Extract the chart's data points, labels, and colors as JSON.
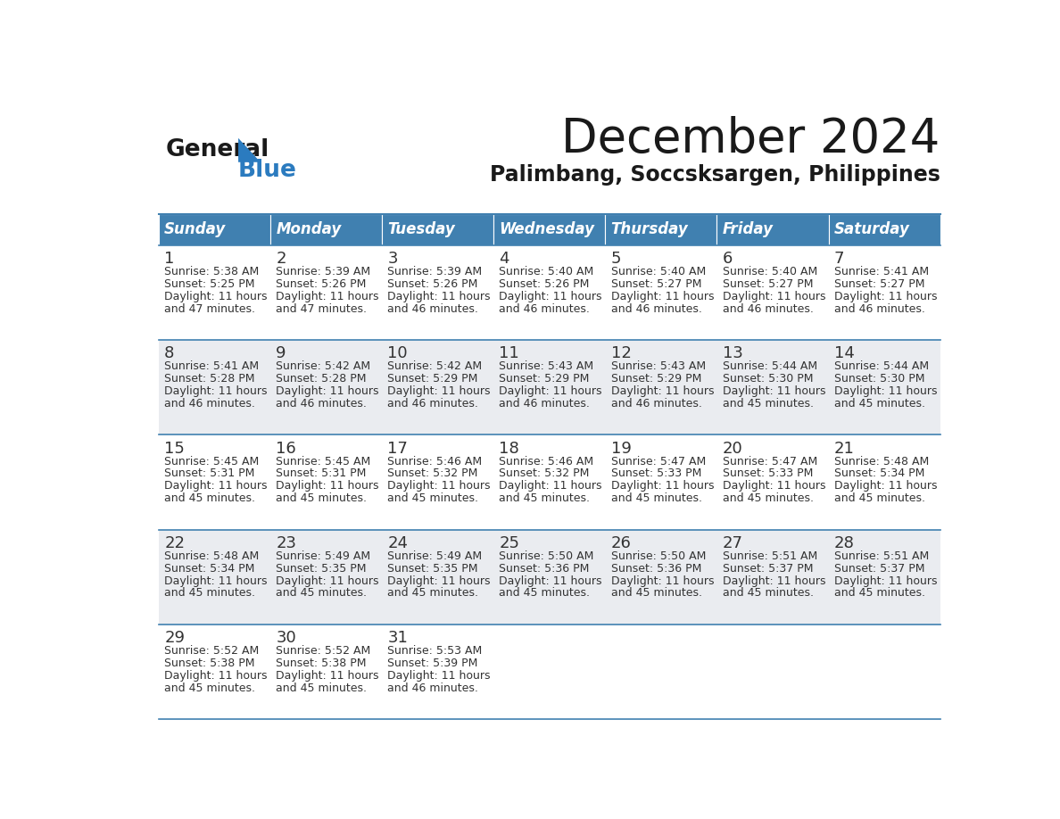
{
  "title": "December 2024",
  "subtitle": "Palimbang, Soccsksargen, Philippines",
  "days_of_week": [
    "Sunday",
    "Monday",
    "Tuesday",
    "Wednesday",
    "Thursday",
    "Friday",
    "Saturday"
  ],
  "header_bg": "#4080B0",
  "header_text": "#FFFFFF",
  "row_bg_odd": "#FFFFFF",
  "row_bg_even": "#EAECF0",
  "border_color": "#4080B0",
  "day_num_color": "#333333",
  "text_color": "#333333",
  "title_color": "#1a1a1a",
  "logo_general_color": "#1a1a1a",
  "logo_blue_color": "#2b7bbf",
  "calendar_data": [
    {
      "week": 1,
      "days": [
        {
          "day": 1,
          "dow": 0,
          "sunrise": "5:38 AM",
          "sunset": "5:25 PM",
          "daylight_hours": 11,
          "daylight_minutes": 47
        },
        {
          "day": 2,
          "dow": 1,
          "sunrise": "5:39 AM",
          "sunset": "5:26 PM",
          "daylight_hours": 11,
          "daylight_minutes": 47
        },
        {
          "day": 3,
          "dow": 2,
          "sunrise": "5:39 AM",
          "sunset": "5:26 PM",
          "daylight_hours": 11,
          "daylight_minutes": 46
        },
        {
          "day": 4,
          "dow": 3,
          "sunrise": "5:40 AM",
          "sunset": "5:26 PM",
          "daylight_hours": 11,
          "daylight_minutes": 46
        },
        {
          "day": 5,
          "dow": 4,
          "sunrise": "5:40 AM",
          "sunset": "5:27 PM",
          "daylight_hours": 11,
          "daylight_minutes": 46
        },
        {
          "day": 6,
          "dow": 5,
          "sunrise": "5:40 AM",
          "sunset": "5:27 PM",
          "daylight_hours": 11,
          "daylight_minutes": 46
        },
        {
          "day": 7,
          "dow": 6,
          "sunrise": "5:41 AM",
          "sunset": "5:27 PM",
          "daylight_hours": 11,
          "daylight_minutes": 46
        }
      ]
    },
    {
      "week": 2,
      "days": [
        {
          "day": 8,
          "dow": 0,
          "sunrise": "5:41 AM",
          "sunset": "5:28 PM",
          "daylight_hours": 11,
          "daylight_minutes": 46
        },
        {
          "day": 9,
          "dow": 1,
          "sunrise": "5:42 AM",
          "sunset": "5:28 PM",
          "daylight_hours": 11,
          "daylight_minutes": 46
        },
        {
          "day": 10,
          "dow": 2,
          "sunrise": "5:42 AM",
          "sunset": "5:29 PM",
          "daylight_hours": 11,
          "daylight_minutes": 46
        },
        {
          "day": 11,
          "dow": 3,
          "sunrise": "5:43 AM",
          "sunset": "5:29 PM",
          "daylight_hours": 11,
          "daylight_minutes": 46
        },
        {
          "day": 12,
          "dow": 4,
          "sunrise": "5:43 AM",
          "sunset": "5:29 PM",
          "daylight_hours": 11,
          "daylight_minutes": 46
        },
        {
          "day": 13,
          "dow": 5,
          "sunrise": "5:44 AM",
          "sunset": "5:30 PM",
          "daylight_hours": 11,
          "daylight_minutes": 45
        },
        {
          "day": 14,
          "dow": 6,
          "sunrise": "5:44 AM",
          "sunset": "5:30 PM",
          "daylight_hours": 11,
          "daylight_minutes": 45
        }
      ]
    },
    {
      "week": 3,
      "days": [
        {
          "day": 15,
          "dow": 0,
          "sunrise": "5:45 AM",
          "sunset": "5:31 PM",
          "daylight_hours": 11,
          "daylight_minutes": 45
        },
        {
          "day": 16,
          "dow": 1,
          "sunrise": "5:45 AM",
          "sunset": "5:31 PM",
          "daylight_hours": 11,
          "daylight_minutes": 45
        },
        {
          "day": 17,
          "dow": 2,
          "sunrise": "5:46 AM",
          "sunset": "5:32 PM",
          "daylight_hours": 11,
          "daylight_minutes": 45
        },
        {
          "day": 18,
          "dow": 3,
          "sunrise": "5:46 AM",
          "sunset": "5:32 PM",
          "daylight_hours": 11,
          "daylight_minutes": 45
        },
        {
          "day": 19,
          "dow": 4,
          "sunrise": "5:47 AM",
          "sunset": "5:33 PM",
          "daylight_hours": 11,
          "daylight_minutes": 45
        },
        {
          "day": 20,
          "dow": 5,
          "sunrise": "5:47 AM",
          "sunset": "5:33 PM",
          "daylight_hours": 11,
          "daylight_minutes": 45
        },
        {
          "day": 21,
          "dow": 6,
          "sunrise": "5:48 AM",
          "sunset": "5:34 PM",
          "daylight_hours": 11,
          "daylight_minutes": 45
        }
      ]
    },
    {
      "week": 4,
      "days": [
        {
          "day": 22,
          "dow": 0,
          "sunrise": "5:48 AM",
          "sunset": "5:34 PM",
          "daylight_hours": 11,
          "daylight_minutes": 45
        },
        {
          "day": 23,
          "dow": 1,
          "sunrise": "5:49 AM",
          "sunset": "5:35 PM",
          "daylight_hours": 11,
          "daylight_minutes": 45
        },
        {
          "day": 24,
          "dow": 2,
          "sunrise": "5:49 AM",
          "sunset": "5:35 PM",
          "daylight_hours": 11,
          "daylight_minutes": 45
        },
        {
          "day": 25,
          "dow": 3,
          "sunrise": "5:50 AM",
          "sunset": "5:36 PM",
          "daylight_hours": 11,
          "daylight_minutes": 45
        },
        {
          "day": 26,
          "dow": 4,
          "sunrise": "5:50 AM",
          "sunset": "5:36 PM",
          "daylight_hours": 11,
          "daylight_minutes": 45
        },
        {
          "day": 27,
          "dow": 5,
          "sunrise": "5:51 AM",
          "sunset": "5:37 PM",
          "daylight_hours": 11,
          "daylight_minutes": 45
        },
        {
          "day": 28,
          "dow": 6,
          "sunrise": "5:51 AM",
          "sunset": "5:37 PM",
          "daylight_hours": 11,
          "daylight_minutes": 45
        }
      ]
    },
    {
      "week": 5,
      "days": [
        {
          "day": 29,
          "dow": 0,
          "sunrise": "5:52 AM",
          "sunset": "5:38 PM",
          "daylight_hours": 11,
          "daylight_minutes": 45
        },
        {
          "day": 30,
          "dow": 1,
          "sunrise": "5:52 AM",
          "sunset": "5:38 PM",
          "daylight_hours": 11,
          "daylight_minutes": 45
        },
        {
          "day": 31,
          "dow": 2,
          "sunrise": "5:53 AM",
          "sunset": "5:39 PM",
          "daylight_hours": 11,
          "daylight_minutes": 46
        }
      ]
    }
  ]
}
